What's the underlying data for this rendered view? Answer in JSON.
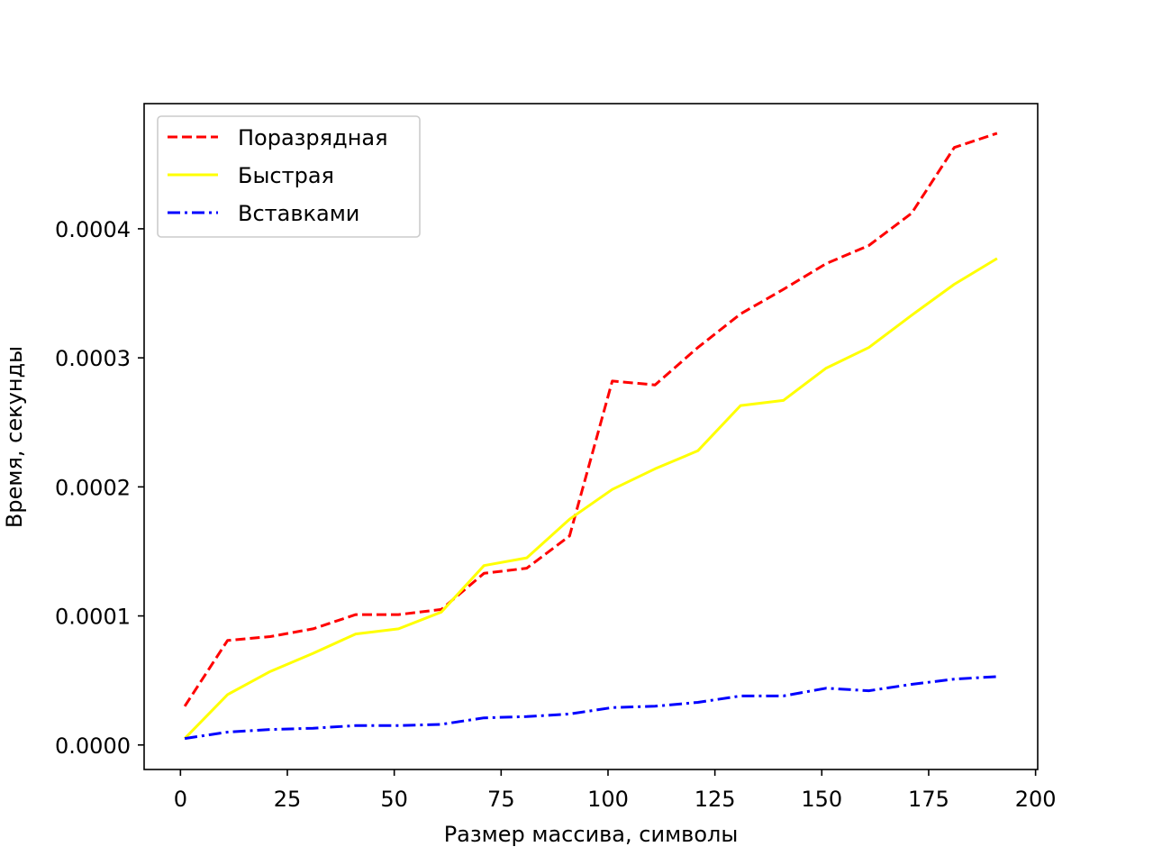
{
  "chart_data": {
    "type": "line",
    "xlabel": "Размер массива, символы",
    "ylabel": "Время, секунды",
    "xlim": [
      -8.5,
      200.5
    ],
    "ylim": [
      -1.9e-05,
      0.000497
    ],
    "xticks": [
      0,
      25,
      50,
      75,
      100,
      125,
      150,
      175,
      200
    ],
    "xtick_labels": [
      "0",
      "25",
      "50",
      "75",
      "100",
      "125",
      "150",
      "175",
      "200"
    ],
    "yticks": [
      0,
      0.0001,
      0.0002,
      0.0003,
      0.0004
    ],
    "ytick_labels": [
      "0.0000",
      "0.0001",
      "0.0002",
      "0.0003",
      "0.0004"
    ],
    "grid": false,
    "legend_position": "top-left",
    "x": [
      1,
      11,
      21,
      31,
      41,
      51,
      61,
      71,
      81,
      91,
      101,
      111,
      121,
      131,
      141,
      151,
      161,
      171,
      181,
      191
    ],
    "series": [
      {
        "name": "Поразрядная",
        "color": "#ff0000",
        "style": "dashed",
        "values": [
          3e-05,
          8.1e-05,
          8.4e-05,
          9e-05,
          0.000101,
          0.000101,
          0.000105,
          0.000133,
          0.000137,
          0.000162,
          0.000282,
          0.000279,
          0.000308,
          0.000334,
          0.000353,
          0.000373,
          0.000387,
          0.000412,
          0.000463,
          0.000474
        ]
      },
      {
        "name": "Быстрая",
        "color": "#ffff00",
        "style": "solid",
        "values": [
          5e-06,
          3.9e-05,
          5.7e-05,
          7.1e-05,
          8.6e-05,
          9e-05,
          0.000103,
          0.000139,
          0.000145,
          0.000175,
          0.000198,
          0.000214,
          0.000228,
          0.000263,
          0.000267,
          0.000292,
          0.000308,
          0.000333,
          0.000357,
          0.000377
        ]
      },
      {
        "name": "Вставками",
        "color": "#0000ff",
        "style": "dashdot",
        "values": [
          5e-06,
          1e-05,
          1.2e-05,
          1.3e-05,
          1.5e-05,
          1.5e-05,
          1.6e-05,
          2.1e-05,
          2.2e-05,
          2.4e-05,
          2.9e-05,
          3e-05,
          3.3e-05,
          3.8e-05,
          3.8e-05,
          4.4e-05,
          4.2e-05,
          4.7e-05,
          5.1e-05,
          5.3e-05
        ]
      }
    ]
  }
}
